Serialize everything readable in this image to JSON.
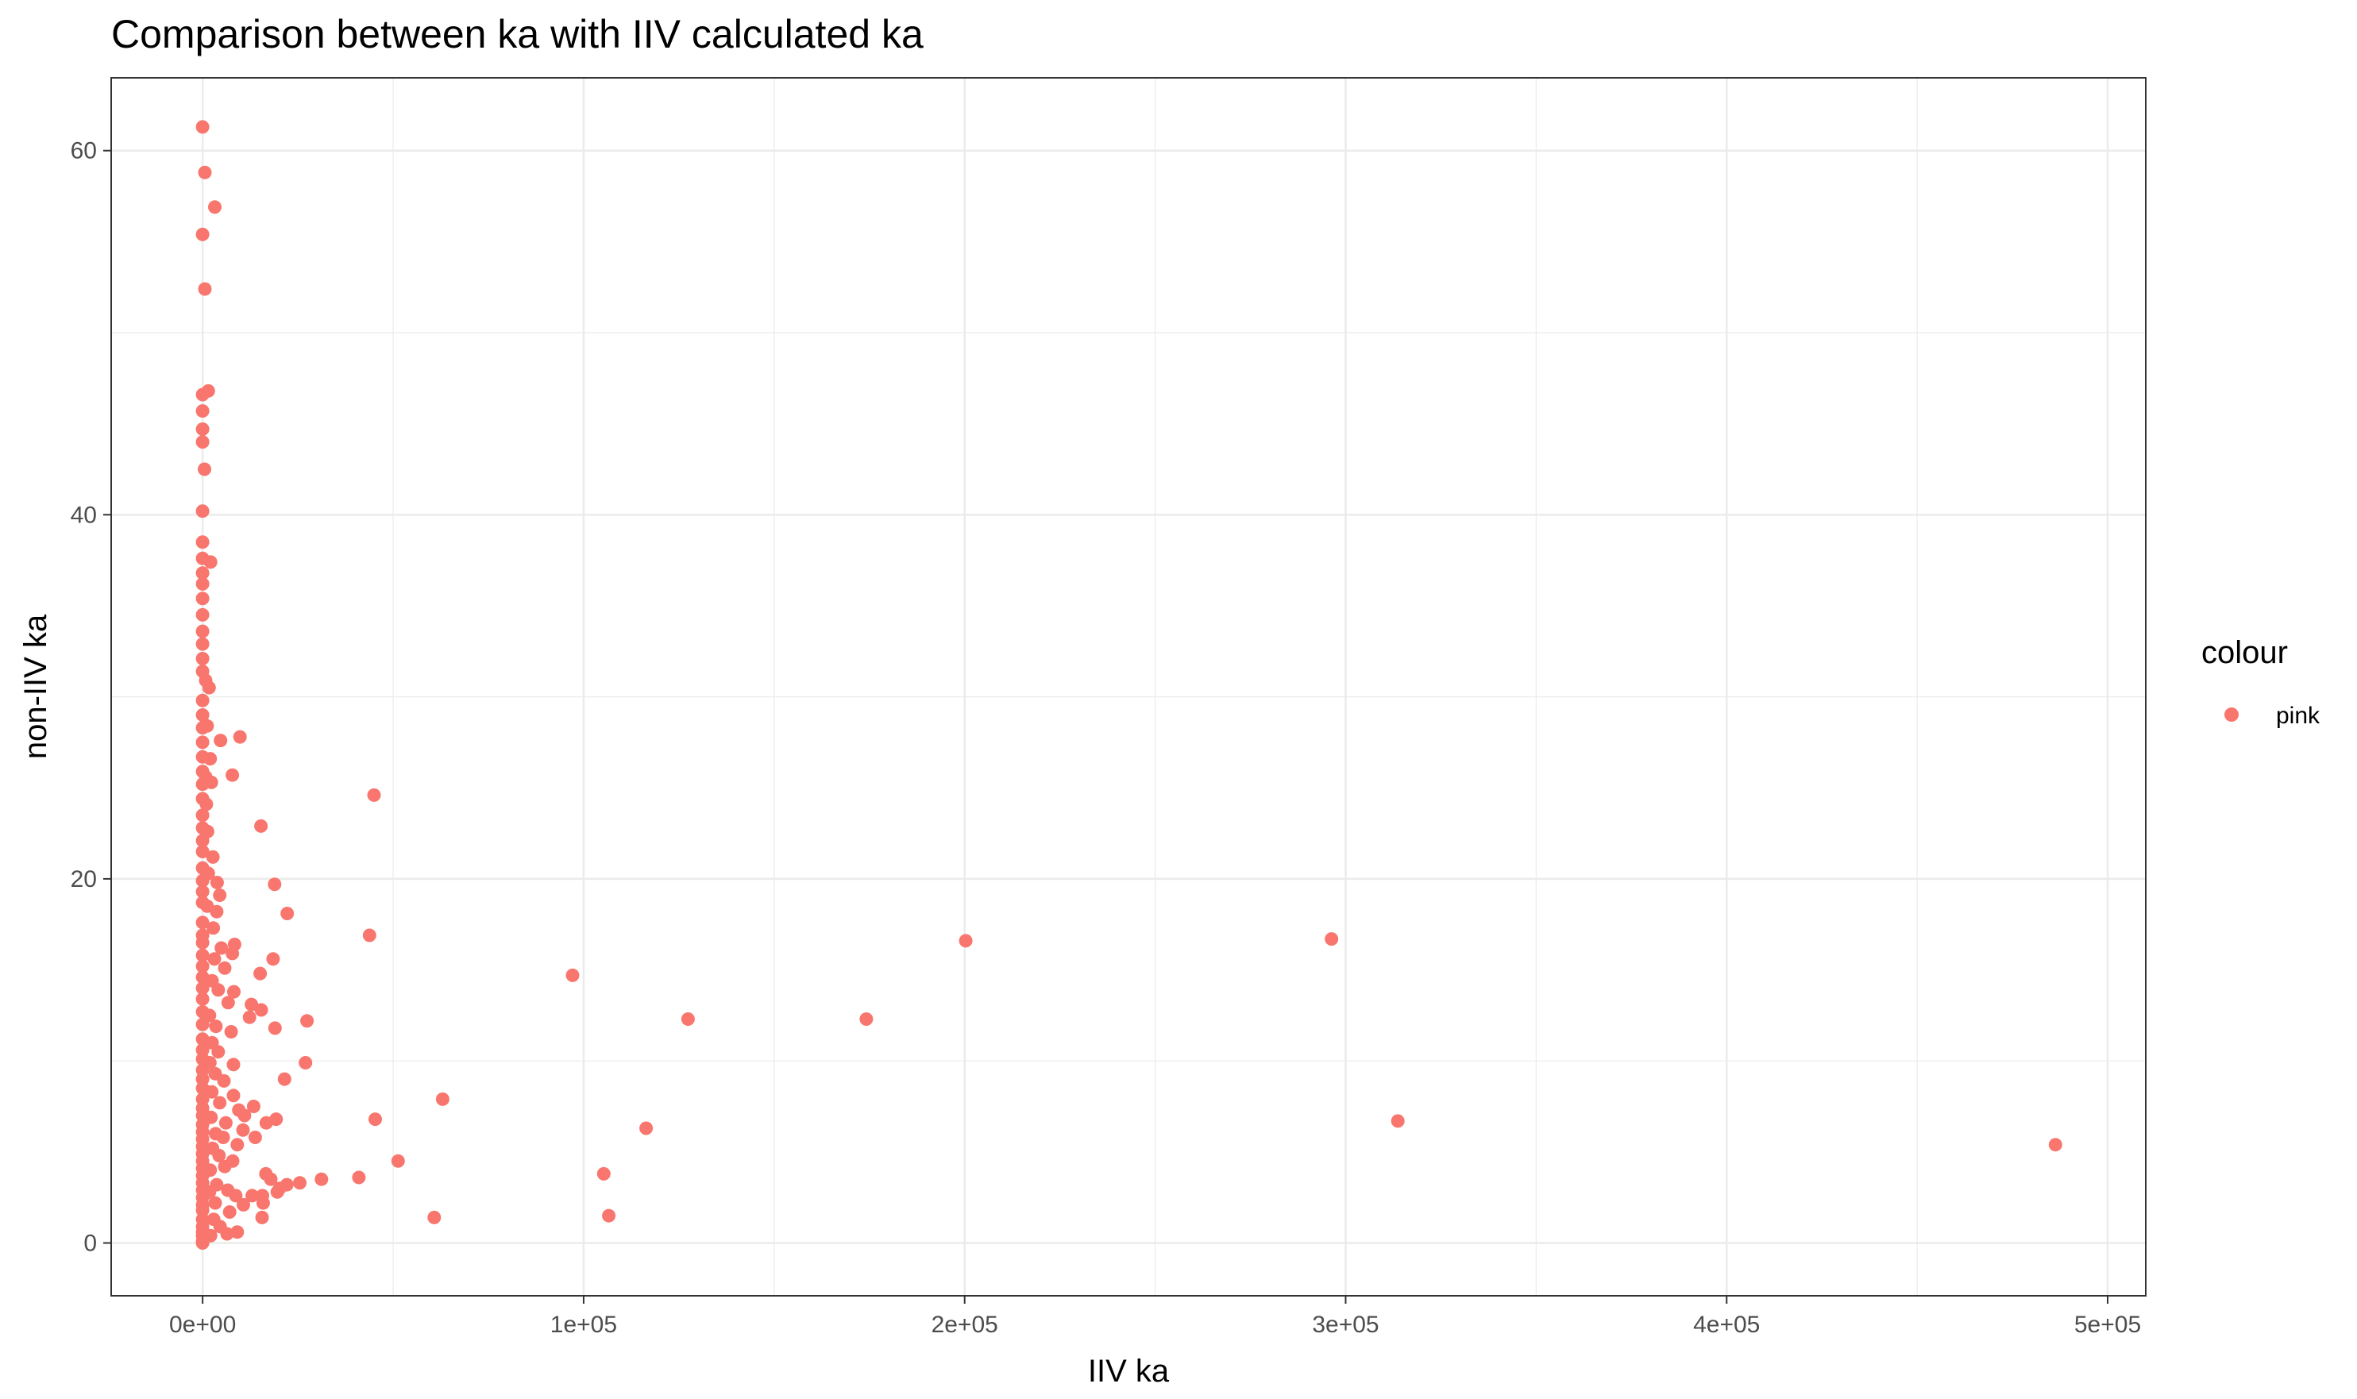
{
  "chart_data": {
    "type": "scatter",
    "title": "Comparison between ka with IIV calculated ka",
    "xlabel": "IIV ka",
    "ylabel": "non-IIV ka",
    "xlim": [
      -24000,
      510000
    ],
    "ylim": [
      -2.9,
      64
    ],
    "x_ticks": [
      0,
      100000,
      200000,
      300000,
      400000,
      500000
    ],
    "x_tick_labels": [
      "0e+00",
      "1e+05",
      "2e+05",
      "3e+05",
      "4e+05",
      "5e+05"
    ],
    "y_ticks": [
      0,
      20,
      40,
      60
    ],
    "y_tick_labels": [
      "0",
      "20",
      "40",
      "60"
    ],
    "grid": true,
    "legend": {
      "title": "colour",
      "position": "right",
      "entries": [
        {
          "label": "pink",
          "color": "#f8766d"
        }
      ]
    },
    "series": [
      {
        "name": "pink",
        "color": "#f8766d",
        "points": [
          [
            0,
            61.3
          ],
          [
            600,
            58.8
          ],
          [
            3200,
            56.9
          ],
          [
            0,
            55.4
          ],
          [
            600,
            52.4
          ],
          [
            0,
            46.6
          ],
          [
            1500,
            46.8
          ],
          [
            0,
            45.7
          ],
          [
            0,
            44.7
          ],
          [
            0,
            44.0
          ],
          [
            500,
            42.5
          ],
          [
            0,
            40.2
          ],
          [
            0,
            38.5
          ],
          [
            0,
            37.6
          ],
          [
            2100,
            37.4
          ],
          [
            0,
            36.8
          ],
          [
            0,
            36.2
          ],
          [
            0,
            35.4
          ],
          [
            0,
            34.5
          ],
          [
            0,
            33.6
          ],
          [
            0,
            32.9
          ],
          [
            0,
            32.1
          ],
          [
            0,
            31.4
          ],
          [
            800,
            30.9
          ],
          [
            1700,
            30.5
          ],
          [
            0,
            29.8
          ],
          [
            0,
            29.0
          ],
          [
            0,
            28.3
          ],
          [
            1200,
            28.4
          ],
          [
            0,
            27.5
          ],
          [
            4700,
            27.6
          ],
          [
            9800,
            27.8
          ],
          [
            0,
            26.7
          ],
          [
            2000,
            26.6
          ],
          [
            0,
            25.9
          ],
          [
            800,
            25.6
          ],
          [
            7800,
            25.7
          ],
          [
            0,
            25.2
          ],
          [
            2300,
            25.3
          ],
          [
            45000,
            24.6
          ],
          [
            0,
            24.4
          ],
          [
            1000,
            24.1
          ],
          [
            0,
            23.5
          ],
          [
            0,
            22.8
          ],
          [
            1300,
            22.6
          ],
          [
            15300,
            22.9
          ],
          [
            0,
            22.1
          ],
          [
            0,
            21.5
          ],
          [
            2700,
            21.2
          ],
          [
            0,
            20.6
          ],
          [
            1500,
            20.3
          ],
          [
            0,
            19.9
          ],
          [
            3800,
            19.8
          ],
          [
            18900,
            19.7
          ],
          [
            0,
            19.3
          ],
          [
            4500,
            19.1
          ],
          [
            0,
            18.7
          ],
          [
            1200,
            18.5
          ],
          [
            3700,
            18.2
          ],
          [
            22200,
            18.1
          ],
          [
            0,
            17.6
          ],
          [
            2800,
            17.3
          ],
          [
            0,
            16.9
          ],
          [
            43800,
            16.9
          ],
          [
            0,
            16.5
          ],
          [
            4900,
            16.2
          ],
          [
            8400,
            16.4
          ],
          [
            200300,
            16.6
          ],
          [
            296300,
            16.7
          ],
          [
            0,
            15.8
          ],
          [
            3100,
            15.6
          ],
          [
            7800,
            15.9
          ],
          [
            18500,
            15.6
          ],
          [
            0,
            15.2
          ],
          [
            5800,
            15.1
          ],
          [
            0,
            14.6
          ],
          [
            2500,
            14.4
          ],
          [
            15100,
            14.8
          ],
          [
            97100,
            14.7
          ],
          [
            0,
            14.0
          ],
          [
            4100,
            13.9
          ],
          [
            8200,
            13.8
          ],
          [
            0,
            13.4
          ],
          [
            6700,
            13.2
          ],
          [
            12800,
            13.1
          ],
          [
            15400,
            12.8
          ],
          [
            0,
            12.7
          ],
          [
            1800,
            12.5
          ],
          [
            12300,
            12.4
          ],
          [
            27400,
            12.2
          ],
          [
            127400,
            12.3
          ],
          [
            174200,
            12.3
          ],
          [
            0,
            12.0
          ],
          [
            3500,
            11.9
          ],
          [
            19000,
            11.8
          ],
          [
            7500,
            11.6
          ],
          [
            0,
            11.2
          ],
          [
            2500,
            11.0
          ],
          [
            0,
            10.6
          ],
          [
            4100,
            10.5
          ],
          [
            0,
            10.1
          ],
          [
            1900,
            9.9
          ],
          [
            8100,
            9.8
          ],
          [
            27000,
            9.9
          ],
          [
            0,
            9.5
          ],
          [
            3300,
            9.3
          ],
          [
            0,
            9.0
          ],
          [
            5600,
            8.9
          ],
          [
            21500,
            9.0
          ],
          [
            0,
            8.5
          ],
          [
            2400,
            8.3
          ],
          [
            8100,
            8.1
          ],
          [
            0,
            7.9
          ],
          [
            63000,
            7.9
          ],
          [
            4500,
            7.7
          ],
          [
            0,
            7.4
          ],
          [
            9500,
            7.3
          ],
          [
            13400,
            7.5
          ],
          [
            0,
            7.0
          ],
          [
            2200,
            6.9
          ],
          [
            11000,
            7.0
          ],
          [
            19300,
            6.8
          ],
          [
            45300,
            6.8
          ],
          [
            313700,
            6.7
          ],
          [
            0,
            6.5
          ],
          [
            6100,
            6.6
          ],
          [
            16700,
            6.6
          ],
          [
            0,
            6.1
          ],
          [
            3400,
            6.0
          ],
          [
            10600,
            6.2
          ],
          [
            116400,
            6.3
          ],
          [
            0,
            5.7
          ],
          [
            5400,
            5.8
          ],
          [
            13800,
            5.8
          ],
          [
            0,
            5.3
          ],
          [
            2600,
            5.2
          ],
          [
            9100,
            5.4
          ],
          [
            486300,
            5.4
          ],
          [
            0,
            4.9
          ],
          [
            4300,
            4.8
          ],
          [
            0,
            4.5
          ],
          [
            7900,
            4.5
          ],
          [
            51300,
            4.5
          ],
          [
            0,
            4.1
          ],
          [
            2000,
            4.0
          ],
          [
            5800,
            4.2
          ],
          [
            0,
            3.7
          ],
          [
            16600,
            3.8
          ],
          [
            17900,
            3.5
          ],
          [
            41000,
            3.6
          ],
          [
            31200,
            3.5
          ],
          [
            105300,
            3.8
          ],
          [
            0,
            3.3
          ],
          [
            3700,
            3.2
          ],
          [
            22100,
            3.2
          ],
          [
            25500,
            3.3
          ],
          [
            0,
            2.9
          ],
          [
            1800,
            2.8
          ],
          [
            6600,
            2.9
          ],
          [
            20200,
            3.0
          ],
          [
            0,
            2.5
          ],
          [
            8700,
            2.6
          ],
          [
            13000,
            2.6
          ],
          [
            15700,
            2.6
          ],
          [
            19600,
            2.8
          ],
          [
            0,
            2.1
          ],
          [
            3300,
            2.2
          ],
          [
            10700,
            2.1
          ],
          [
            15900,
            2.2
          ],
          [
            0,
            1.8
          ],
          [
            7100,
            1.7
          ],
          [
            15600,
            1.4
          ],
          [
            60800,
            1.4
          ],
          [
            106600,
            1.5
          ],
          [
            0,
            1.3
          ],
          [
            2900,
            1.3
          ],
          [
            0,
            0.9
          ],
          [
            4600,
            0.9
          ],
          [
            0,
            0.6
          ],
          [
            9100,
            0.6
          ],
          [
            0,
            0.4
          ],
          [
            2100,
            0.4
          ],
          [
            0,
            0.1
          ],
          [
            6400,
            0.5
          ],
          [
            0,
            0.0
          ]
        ]
      }
    ]
  }
}
